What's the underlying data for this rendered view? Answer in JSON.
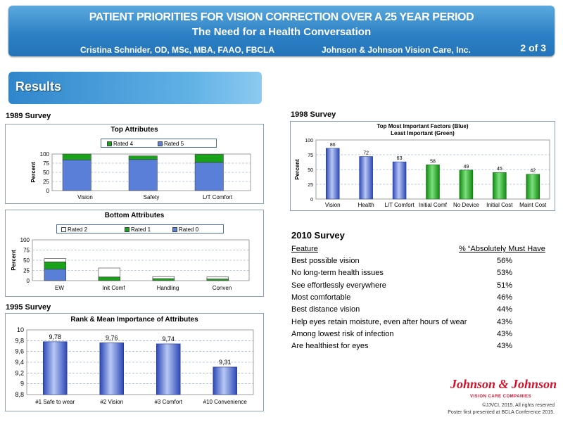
{
  "header": {
    "title": "PATIENT PRIORITIES FOR VISION CORRECTION OVER A 25 YEAR PERIOD",
    "subtitle": "The Need for a Health Conversation",
    "authors": "Cristina Schnider, OD, MSc, MBA, FAAO, FBCLA",
    "company": "Johnson & Johnson Vision Care, Inc.",
    "page": "2 of 3"
  },
  "section_title": "Results",
  "survey_1989": "1989 Survey",
  "survey_1995": "1995 Survey",
  "survey_1998": "1998 Survey",
  "colors": {
    "blue": "#5a7fd8",
    "green": "#1aa31a",
    "white": "#ffffff",
    "banner": "#2b7fc4"
  },
  "chart_data": [
    {
      "type": "bar",
      "title": "Top Attributes",
      "ylabel": "Percent",
      "ylim": [
        0,
        100
      ],
      "yticks": [
        "0",
        "25",
        "50",
        "75",
        "100"
      ],
      "categories": [
        "Vision",
        "Safety",
        "L/T Comfort"
      ],
      "series": [
        {
          "name": "Rated 4",
          "values": [
            16,
            10,
            22
          ]
        },
        {
          "name": "Rated 5",
          "values": [
            84,
            85,
            77
          ]
        }
      ]
    },
    {
      "type": "bar",
      "title": "Bottom Attributes",
      "ylabel": "Percent",
      "ylim": [
        0,
        100
      ],
      "yticks": [
        "0",
        "25",
        "50",
        "75",
        "100"
      ],
      "categories": [
        "EW",
        "Init Comf",
        "Handling",
        "Conven"
      ],
      "series": [
        {
          "name": "Rated 2",
          "values": [
            8,
            22,
            5,
            5
          ]
        },
        {
          "name": "Rated 1",
          "values": [
            18,
            9,
            5,
            4
          ]
        },
        {
          "name": "Rated 0",
          "values": [
            28,
            0,
            0,
            0
          ]
        }
      ]
    },
    {
      "type": "bar",
      "title": "Rank & Mean Importance of Attributes",
      "ylim": [
        8.8,
        10
      ],
      "yticks": [
        "8,8",
        "9",
        "9,2",
        "9,4",
        "9,6",
        "9,8",
        "10"
      ],
      "categories": [
        "#1 Safe to wear",
        "#2 Vision",
        "#3 Comfort",
        "#10 Convenience"
      ],
      "values": [
        9.78,
        9.76,
        9.74,
        9.31
      ],
      "labels": [
        "9,78",
        "9,76",
        "9,74",
        "9,31"
      ]
    },
    {
      "type": "bar",
      "title": "Top Most Important Factors (Blue)",
      "subtitle": "Least Important (Green)",
      "ylabel": "Percent",
      "ylim": [
        0,
        100
      ],
      "yticks": [
        "0",
        "25",
        "50",
        "75",
        "100"
      ],
      "categories": [
        "Vision",
        "Health",
        "L/T Comfort",
        "Initial Comf",
        "No Device",
        "Initial Cost",
        "Maint Cost"
      ],
      "values": [
        86,
        72,
        63,
        58,
        49,
        45,
        42
      ],
      "groups": [
        "blue",
        "blue",
        "blue",
        "green",
        "green",
        "green",
        "green"
      ]
    }
  ],
  "survey_2010": {
    "title": "2010  Survey",
    "col_feature": "Feature",
    "col_value": "% “Absolutely Must Have",
    "rows": [
      {
        "feature": "Best possible vision",
        "value": "56%"
      },
      {
        "feature": "No long-term health issues",
        "value": "53%"
      },
      {
        "feature": "See effortlessly everywhere",
        "value": "51%"
      },
      {
        "feature": "Most comfortable",
        "value": "46%"
      },
      {
        "feature": "Best distance vision",
        "value": "44%"
      },
      {
        "feature": "Help eyes retain moisture, even after hours of wear",
        "value": "43%"
      },
      {
        "feature": "Among lowest risk of infection",
        "value": "43%"
      },
      {
        "feature": "Are healthiest for eyes",
        "value": "43%"
      }
    ]
  },
  "footer": {
    "logo": "Johnson & Johnson",
    "logo_sub": "VISION CARE COMPANIES",
    "copyright": "©JJVCI, 2015.  All rights reserved",
    "presented": "Poster first presented at BCLA Conference 2015."
  }
}
